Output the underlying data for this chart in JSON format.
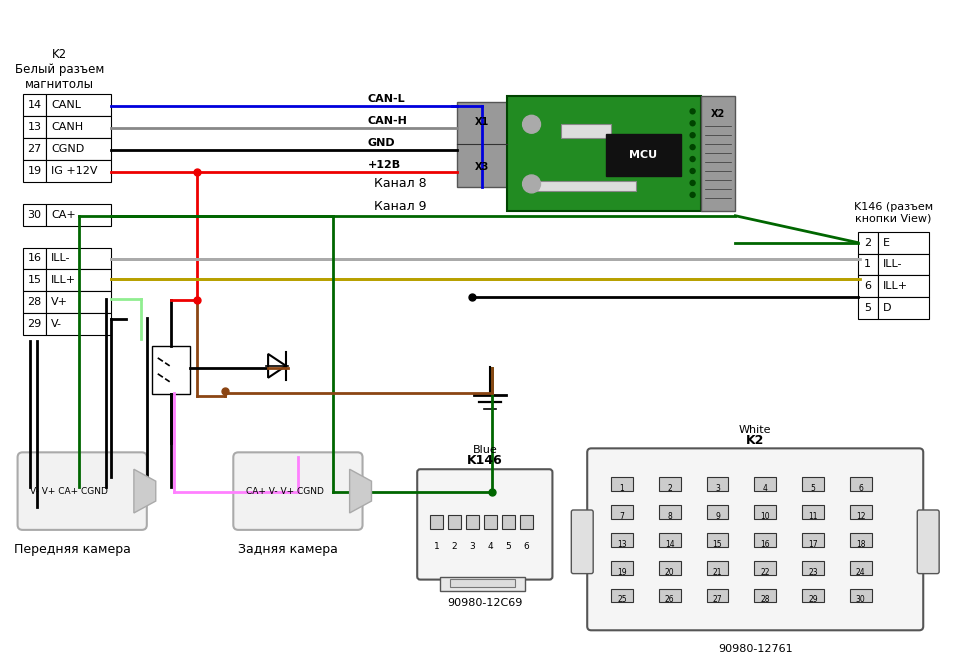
{
  "bg_color": "#ffffff",
  "connector_k2_label": "K2\nБелый разъем\nмагнитолы",
  "connector_k2_pins": [
    {
      "num": "14",
      "name": "CANL"
    },
    {
      "num": "13",
      "name": "CANH"
    },
    {
      "num": "27",
      "name": "CGND"
    },
    {
      "num": "19",
      "name": "IG +12V"
    },
    {
      "num": "30",
      "name": "CA+"
    },
    {
      "num": "16",
      "name": "ILL-"
    },
    {
      "num": "15",
      "name": "ILL+"
    },
    {
      "num": "28",
      "name": "V+"
    },
    {
      "num": "29",
      "name": "V-"
    }
  ],
  "connector_k146_label": "K146 (разъем\nкнопки View)",
  "connector_k146_pins": [
    {
      "num": "2",
      "name": "E"
    },
    {
      "num": "1",
      "name": "ILL-"
    },
    {
      "num": "6",
      "name": "ILL+"
    },
    {
      "num": "5",
      "name": "D"
    }
  ],
  "wire_colors": {
    "CANL": "#0000dd",
    "CANH": "#888888",
    "CGND": "#000000",
    "IG12V": "#ee0000",
    "CA_plus": "#006600",
    "ILL_minus": "#aaaaaa",
    "ILL_plus": "#b8a000",
    "V_plus": "#90ee90",
    "brown": "#8B4513",
    "pink": "#ff80ff"
  },
  "camera_front_label": "Передняя камера",
  "camera_front_inputs": "V- V+ CA+ CGND",
  "camera_rear_label": "Задняя камера",
  "camera_rear_inputs": "CA+ V- V+ CGND",
  "k146_blue_label": "K146",
  "k146_blue_sub": "Blue",
  "k146_part_num": "90980-12C69",
  "k2_white_label": "K2",
  "k2_white_sub": "White",
  "k2_part_num": "90980-12761"
}
